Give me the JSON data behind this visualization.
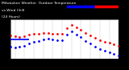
{
  "title_line1": "Milwaukee Weather  Outdoor Temperature",
  "title_line2": "vs Wind Chill",
  "title_line3": "(24 Hours)",
  "bg_color": "#000000",
  "plot_bg_color": "#ffffff",
  "x_hours": [
    1,
    2,
    3,
    4,
    5,
    6,
    7,
    8,
    9,
    10,
    11,
    12,
    13,
    14,
    15,
    16,
    17,
    18,
    19,
    20,
    21,
    22,
    23,
    24
  ],
  "temp_values": [
    35,
    34,
    33,
    34,
    36,
    37,
    37,
    38,
    38,
    37,
    37,
    37,
    44,
    48,
    45,
    42,
    38,
    35,
    32,
    29,
    27,
    26,
    24,
    22
  ],
  "windchill_values": [
    20,
    19,
    20,
    22,
    25,
    27,
    28,
    30,
    31,
    30,
    29,
    29,
    36,
    40,
    36,
    33,
    28,
    25,
    20,
    17,
    15,
    13,
    11,
    9
  ],
  "ylim": [
    5,
    55
  ],
  "ytick_vals": [
    10,
    20,
    30,
    40,
    50
  ],
  "ytick_labels": [
    "10",
    "20",
    "30",
    "40",
    "50"
  ],
  "temp_color": "#ff0000",
  "windchill_color": "#0000ff",
  "legend_blue_color": "#0000ff",
  "legend_red_color": "#ff0000",
  "marker_size": 2.0,
  "tick_fontsize": 2.8,
  "grid_color": "#999999",
  "blue_line_x": [
    1,
    5
  ],
  "blue_line_y": [
    30,
    30
  ]
}
